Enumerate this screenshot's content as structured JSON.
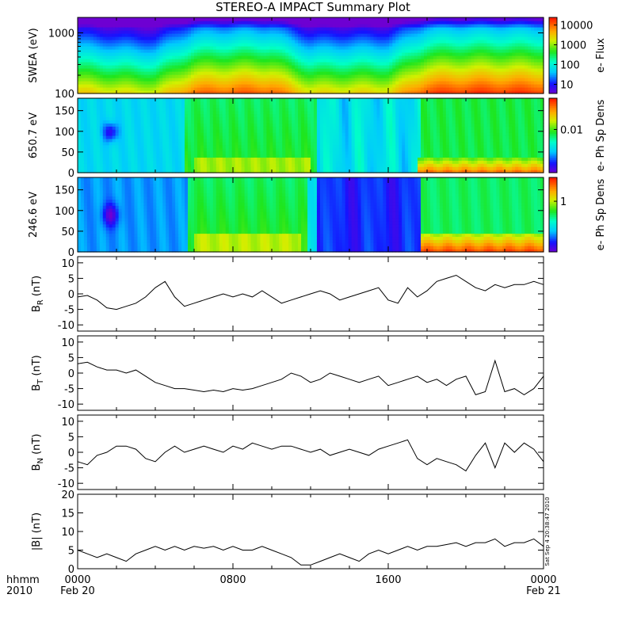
{
  "title": "STEREO-A IMPACT Summary Plot",
  "stamp": "Sat Sep  4 20:38:47 2010",
  "colors": {
    "line": "#000000",
    "background": "#ffffff"
  },
  "chart_data": [
    {
      "type": "heatmap",
      "panel": "swea",
      "ylabel": "SWEA (eV)",
      "yscale": "log",
      "ylim": [
        100,
        1800
      ],
      "yticks": [
        "100",
        "1000"
      ],
      "colorbar": {
        "label": "e- Flux",
        "scale": "log",
        "ticks": [
          "10",
          "100",
          "1000",
          "10000"
        ]
      },
      "x_hours": [
        0,
        2,
        4,
        6,
        8,
        10,
        12,
        14,
        16,
        18,
        20,
        22,
        24
      ],
      "level_by_energy_low": [
        0.78,
        0.74,
        0.72,
        0.9,
        0.92,
        0.92,
        0.75,
        0.76,
        0.76,
        0.95,
        0.97,
        0.97,
        0.96
      ]
    },
    {
      "type": "heatmap",
      "panel": "pad-650",
      "ylabel": "650.7 eV",
      "ylim": [
        0,
        180
      ],
      "yticks": [
        "0",
        "50",
        "100",
        "150"
      ],
      "colorbar": {
        "label": "e- Ph Sp Dens",
        "scale": "log",
        "ticks": [
          "0.01"
        ]
      }
    },
    {
      "type": "heatmap",
      "panel": "pad-246",
      "ylabel": "246.6 eV",
      "ylim": [
        0,
        180
      ],
      "yticks": [
        "0",
        "50",
        "100",
        "150"
      ],
      "colorbar": {
        "label": "e- Ph Sp Dens",
        "scale": "log",
        "ticks": [
          "1"
        ]
      }
    },
    {
      "type": "line",
      "panel": "br",
      "ylabel_main": "B",
      "ylabel_sub": "R",
      "ylabel_tail": " (nT)",
      "ylim": [
        -12,
        12
      ],
      "yticks": [
        "-10",
        "-5",
        "0",
        "5",
        "10"
      ],
      "x": [
        0,
        0.5,
        1,
        1.5,
        2,
        2.5,
        3,
        3.5,
        4,
        4.5,
        5,
        5.5,
        6,
        6.5,
        7,
        7.5,
        8,
        8.5,
        9,
        9.5,
        10,
        10.5,
        11,
        11.5,
        12,
        12.5,
        13,
        13.5,
        14,
        14.5,
        15,
        15.5,
        16,
        16.5,
        17,
        17.5,
        18,
        18.5,
        19,
        19.5,
        20,
        20.5,
        21,
        21.5,
        22,
        22.5,
        23,
        23.5,
        24
      ],
      "y": [
        -1,
        -0.5,
        -2,
        -4.5,
        -5,
        -4,
        -3,
        -1,
        2,
        4,
        -1,
        -4,
        -3,
        -2,
        -1,
        0,
        -1,
        0,
        -1,
        1,
        -1,
        -3,
        -2,
        -1,
        0,
        1,
        0,
        -2,
        -1,
        0,
        1,
        2,
        -2,
        -3,
        2,
        -1,
        1,
        4,
        5,
        6,
        4,
        2,
        1,
        3,
        2,
        3,
        3,
        4,
        3
      ]
    },
    {
      "type": "line",
      "panel": "bt",
      "ylabel_main": "B",
      "ylabel_sub": "T",
      "ylabel_tail": " (nT)",
      "ylim": [
        -12,
        12
      ],
      "yticks": [
        "-10",
        "-5",
        "0",
        "5",
        "10"
      ],
      "x": [
        0,
        0.5,
        1,
        1.5,
        2,
        2.5,
        3,
        3.5,
        4,
        4.5,
        5,
        5.5,
        6,
        6.5,
        7,
        7.5,
        8,
        8.5,
        9,
        9.5,
        10,
        10.5,
        11,
        11.5,
        12,
        12.5,
        13,
        13.5,
        14,
        14.5,
        15,
        15.5,
        16,
        16.5,
        17,
        17.5,
        18,
        18.5,
        19,
        19.5,
        20,
        20.5,
        21,
        21.5,
        22,
        22.5,
        23,
        23.5,
        24
      ],
      "y": [
        3,
        3.5,
        2,
        1,
        1,
        0,
        1,
        -1,
        -3,
        -4,
        -5,
        -5,
        -5.5,
        -6,
        -5.5,
        -6,
        -5,
        -5.5,
        -5,
        -4,
        -3,
        -2,
        0,
        -1,
        -3,
        -2,
        0,
        -1,
        -2,
        -3,
        -2,
        -1,
        -4,
        -3,
        -2,
        -1,
        -3,
        -2,
        -4,
        -2,
        -1,
        -7,
        -6,
        4,
        -6,
        -5,
        -7,
        -5,
        -1
      ]
    },
    {
      "type": "line",
      "panel": "bn",
      "ylabel_main": "B",
      "ylabel_sub": "N",
      "ylabel_tail": " (nT)",
      "ylim": [
        -12,
        12
      ],
      "yticks": [
        "-10",
        "-5",
        "0",
        "5",
        "10"
      ],
      "x": [
        0,
        0.5,
        1,
        1.5,
        2,
        2.5,
        3,
        3.5,
        4,
        4.5,
        5,
        5.5,
        6,
        6.5,
        7,
        7.5,
        8,
        8.5,
        9,
        9.5,
        10,
        10.5,
        11,
        11.5,
        12,
        12.5,
        13,
        13.5,
        14,
        14.5,
        15,
        15.5,
        16,
        16.5,
        17,
        17.5,
        18,
        18.5,
        19,
        19.5,
        20,
        20.5,
        21,
        21.5,
        22,
        22.5,
        23,
        23.5,
        24
      ],
      "y": [
        -3,
        -4,
        -1,
        0,
        2,
        2,
        1,
        -2,
        -3,
        0,
        2,
        0,
        1,
        2,
        1,
        0,
        2,
        1,
        3,
        2,
        1,
        2,
        2,
        1,
        0,
        1,
        -1,
        0,
        1,
        0,
        -1,
        1,
        2,
        3,
        4,
        -2,
        -4,
        -2,
        -3,
        -4,
        -6,
        -1,
        3,
        -5,
        3,
        0,
        3,
        1,
        -3
      ]
    },
    {
      "type": "line",
      "panel": "btot",
      "ylabel_main": "|B|",
      "ylabel_sub": "",
      "ylabel_tail": " (nT)",
      "ylim": [
        0,
        20
      ],
      "yticks": [
        "0",
        "5",
        "10",
        "15",
        "20"
      ],
      "x": [
        0,
        0.5,
        1,
        1.5,
        2,
        2.5,
        3,
        3.5,
        4,
        4.5,
        5,
        5.5,
        6,
        6.5,
        7,
        7.5,
        8,
        8.5,
        9,
        9.5,
        10,
        10.5,
        11,
        11.5,
        12,
        12.5,
        13,
        13.5,
        14,
        14.5,
        15,
        15.5,
        16,
        16.5,
        17,
        17.5,
        18,
        18.5,
        19,
        19.5,
        20,
        20.5,
        21,
        21.5,
        22,
        22.5,
        23,
        23.5,
        24
      ],
      "y": [
        5,
        4,
        3,
        4,
        3,
        2,
        4,
        5,
        6,
        5,
        6,
        5,
        6,
        5.5,
        6,
        5,
        6,
        5,
        5,
        6,
        5,
        4,
        3,
        1,
        1,
        2,
        3,
        4,
        3,
        2,
        4,
        5,
        4,
        5,
        6,
        5,
        6,
        6,
        6.5,
        7,
        6,
        7,
        7,
        8,
        6,
        7,
        7,
        8,
        6
      ]
    }
  ],
  "xaxis": {
    "ticks": [
      {
        "hour": 0,
        "label": "0000",
        "sub": "Feb 20"
      },
      {
        "hour": 8,
        "label": "0800",
        "sub": ""
      },
      {
        "hour": 16,
        "label": "1600",
        "sub": ""
      },
      {
        "hour": 24,
        "label": "0000",
        "sub": "Feb 21"
      }
    ],
    "corner_top": "hhmm",
    "corner_bottom": "2010",
    "xlim": [
      0,
      24
    ]
  }
}
